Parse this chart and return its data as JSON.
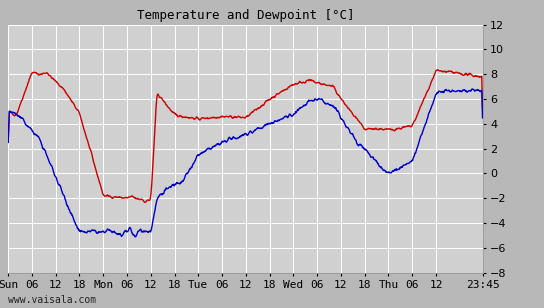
{
  "title": "Temperature and Dewpoint [°C]",
  "outer_bg": "#b8b8b8",
  "plot_bg": "#d0d0d0",
  "grid_color": "#ffffff",
  "temp_color": "#cc0000",
  "dewp_color": "#0000cc",
  "ylim": [
    -8,
    12
  ],
  "yticks": [
    -8,
    -6,
    -4,
    -2,
    0,
    2,
    4,
    6,
    8,
    10,
    12
  ],
  "watermark": "www.vaisala.com",
  "xtick_labels": [
    "Sun",
    "06",
    "12",
    "18",
    "Mon",
    "06",
    "12",
    "18",
    "Tue",
    "06",
    "12",
    "18",
    "Wed",
    "06",
    "12",
    "18",
    "Thu",
    "06",
    "12",
    "23:45"
  ],
  "xtick_pos": [
    0,
    6,
    12,
    18,
    24,
    30,
    36,
    42,
    48,
    54,
    60,
    66,
    72,
    78,
    84,
    90,
    96,
    102,
    108,
    119.75
  ],
  "xlim": [
    0,
    119.75
  ],
  "linewidth": 1.0,
  "title_fontsize": 9,
  "tick_fontsize": 8
}
